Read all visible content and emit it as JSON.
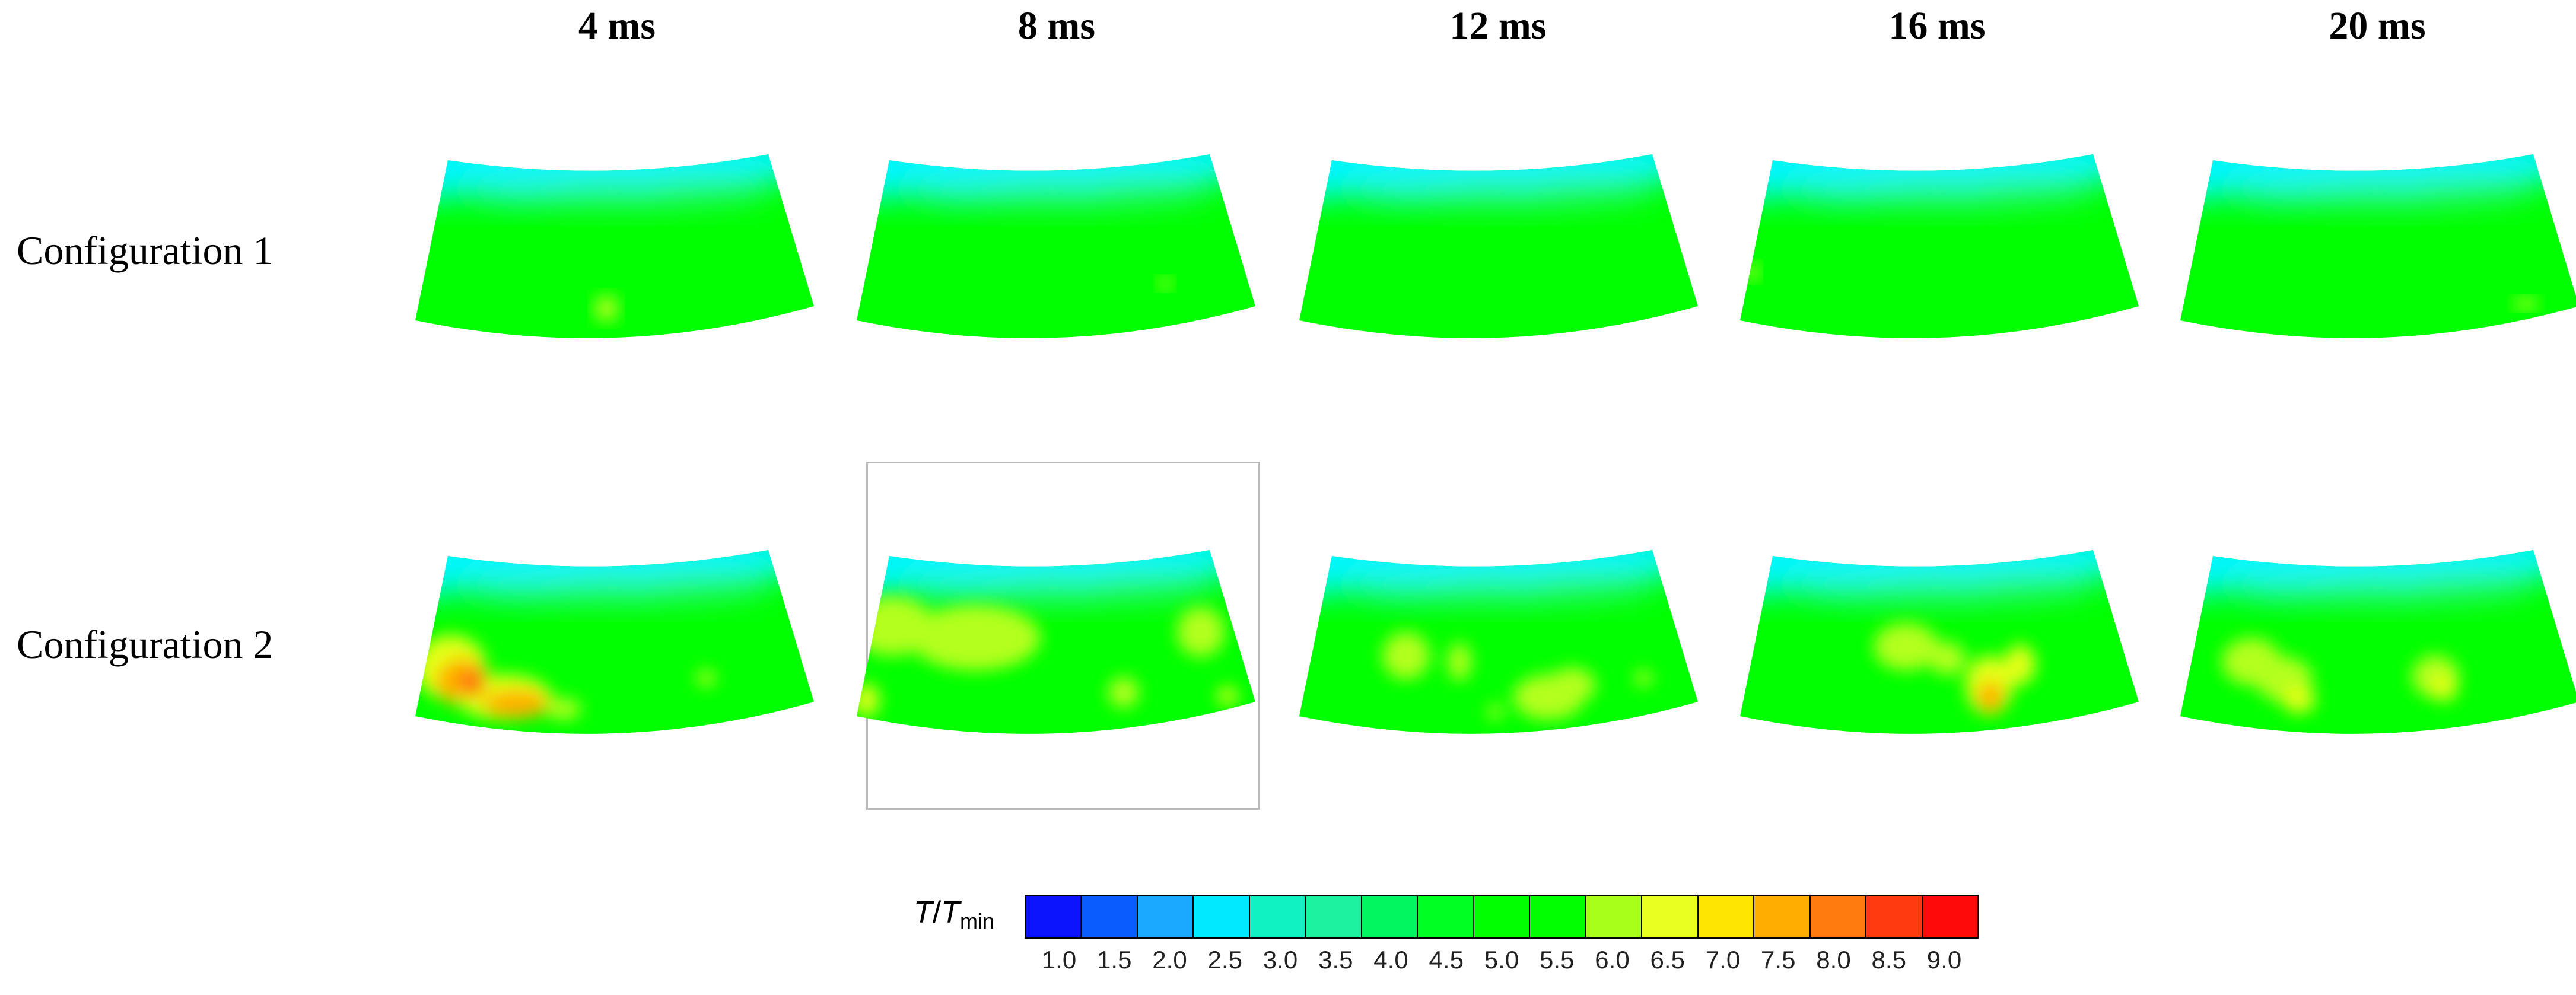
{
  "column_titles": [
    "4 ms",
    "8 ms",
    "12 ms",
    "16 ms",
    "20 ms"
  ],
  "row_labels": [
    "Configuration 1",
    "Configuration 2"
  ],
  "legend": {
    "variable": "T",
    "reference": "T",
    "reference_sub": "min",
    "ticks": [
      "1.0",
      "1.5",
      "2.0",
      "2.5",
      "3.0",
      "3.5",
      "4.0",
      "4.5",
      "5.0",
      "5.5",
      "6.0",
      "6.5",
      "7.0",
      "7.5",
      "8.0",
      "8.5",
      "9.0"
    ],
    "colors": [
      "#0a14ff",
      "#0a5cff",
      "#1aa8ff",
      "#00eaff",
      "#10f2c2",
      "#1cf2a0",
      "#00f55e",
      "#00ff22",
      "#00ff00",
      "#00ff00",
      "#a8ff18",
      "#e8ff20",
      "#ffe400",
      "#ffae00",
      "#ff7a10",
      "#ff3a10",
      "#ff0a0a"
    ]
  },
  "colors": {
    "bulk": "#00ff00",
    "top_band": "#00f7ff",
    "warm_light": "#b4ff1e",
    "warm_mid": "#e4ff18",
    "hot": "#ffb000",
    "hottest": "#ff6a0a"
  }
}
